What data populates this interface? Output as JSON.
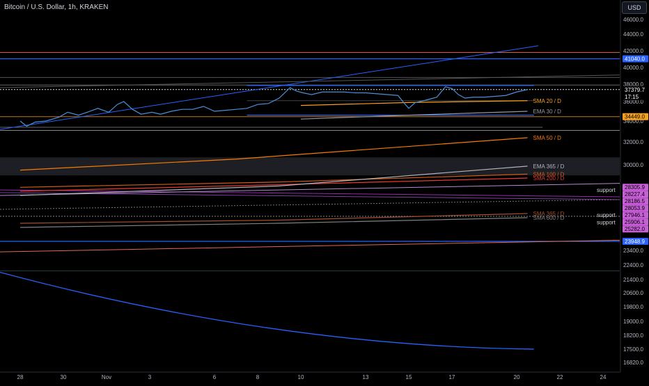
{
  "header": {
    "symbol_title": "Bitcoin / U.S. Dollar, 1h, KRAKEN",
    "currency_label": "USD"
  },
  "chart_data": {
    "type": "line",
    "title": "Bitcoin / U.S. Dollar, 1h, KRAKEN",
    "xlabel": "",
    "ylabel": "",
    "x_ticks": [
      {
        "label": "28",
        "day": 0
      },
      {
        "label": "30",
        "day": 2
      },
      {
        "label": "Nov",
        "day": 4
      },
      {
        "label": "3",
        "day": 6
      },
      {
        "label": "6",
        "day": 9
      },
      {
        "label": "8",
        "day": 11
      },
      {
        "label": "10",
        "day": 13
      },
      {
        "label": "13",
        "day": 16
      },
      {
        "label": "15",
        "day": 18
      },
      {
        "label": "17",
        "day": 20
      },
      {
        "label": "20",
        "day": 23
      },
      {
        "label": "22",
        "day": 25
      },
      {
        "label": "24",
        "day": 27
      }
    ],
    "y_ticks": [
      {
        "label": "46000.0",
        "value": 46000
      },
      {
        "label": "44000.0",
        "value": 44000
      },
      {
        "label": "42000.0",
        "value": 42000
      },
      {
        "label": "40000.0",
        "value": 40000
      },
      {
        "label": "38000.0",
        "value": 38000
      },
      {
        "label": "36000.0",
        "value": 36000
      },
      {
        "label": "34000.0",
        "value": 34000
      },
      {
        "label": "32000.0",
        "value": 32000
      },
      {
        "label": "30000.0",
        "value": 30000
      },
      {
        "label": "23400.0",
        "value": 23400
      },
      {
        "label": "22400.0",
        "value": 22400
      },
      {
        "label": "21400.0",
        "value": 21400
      },
      {
        "label": "20600.0",
        "value": 20600
      },
      {
        "label": "19800.0",
        "value": 19800
      },
      {
        "label": "19000.0",
        "value": 19000
      },
      {
        "label": "18200.0",
        "value": 18200
      },
      {
        "label": "17500.0",
        "value": 17500
      },
      {
        "label": "16820.0",
        "value": 16820
      }
    ],
    "price_series": {
      "color": "#4a90d9",
      "points": [
        [
          0,
          34000
        ],
        [
          0.3,
          33500
        ],
        [
          0.7,
          33900
        ],
        [
          1.2,
          34000
        ],
        [
          1.8,
          34400
        ],
        [
          2.2,
          34900
        ],
        [
          2.7,
          34600
        ],
        [
          3.1,
          34900
        ],
        [
          3.6,
          35300
        ],
        [
          4.1,
          34900
        ],
        [
          4.5,
          35700
        ],
        [
          4.8,
          36000
        ],
        [
          5.2,
          35200
        ],
        [
          5.6,
          34700
        ],
        [
          6.1,
          34900
        ],
        [
          6.5,
          34700
        ],
        [
          7.0,
          35000
        ],
        [
          7.5,
          35200
        ],
        [
          8.0,
          35200
        ],
        [
          8.5,
          35500
        ],
        [
          9.0,
          35000
        ],
        [
          9.5,
          35100
        ],
        [
          10.0,
          35200
        ],
        [
          10.5,
          35300
        ],
        [
          11.0,
          35700
        ],
        [
          11.5,
          35800
        ],
        [
          12.0,
          36400
        ],
        [
          12.5,
          37600
        ],
        [
          12.8,
          37200
        ],
        [
          13.1,
          37000
        ],
        [
          13.5,
          36800
        ],
        [
          14.0,
          37100
        ],
        [
          14.5,
          37100
        ],
        [
          15.0,
          37100
        ],
        [
          15.5,
          37000
        ],
        [
          16.0,
          37000
        ],
        [
          16.5,
          36900
        ],
        [
          17.0,
          36800
        ],
        [
          17.5,
          36700
        ],
        [
          17.8,
          35800
        ],
        [
          18.0,
          35300
        ],
        [
          18.3,
          35900
        ],
        [
          18.7,
          36100
        ],
        [
          19.0,
          36300
        ],
        [
          19.3,
          36500
        ],
        [
          19.7,
          37700
        ],
        [
          20.0,
          37500
        ],
        [
          20.3,
          36800
        ],
        [
          20.6,
          36400
        ],
        [
          21.0,
          36500
        ],
        [
          21.5,
          36500
        ],
        [
          22.0,
          36600
        ],
        [
          22.5,
          36700
        ],
        [
          23.0,
          37100
        ],
        [
          23.5,
          37379.7
        ]
      ]
    },
    "moving_averages": [
      {
        "name": "SMA 20 / D",
        "color": "#f7a21b",
        "points": [
          [
            13,
            35600
          ],
          [
            18,
            35900
          ],
          [
            23.5,
            36100
          ]
        ]
      },
      {
        "name": "EMA 30 / D",
        "color": "#9598a1",
        "points": [
          [
            13,
            34200
          ],
          [
            18,
            34600
          ],
          [
            23.5,
            35000
          ]
        ]
      },
      {
        "name": "SMA 50 / D",
        "color": "#f57c00",
        "points": [
          [
            0,
            29600
          ],
          [
            10,
            30500
          ],
          [
            23.5,
            32400
          ]
        ]
      },
      {
        "name": "SMA 100 / D",
        "color": "#d35e1a",
        "points": [
          [
            0,
            28300
          ],
          [
            12,
            28700
          ],
          [
            23.5,
            29300
          ]
        ]
      },
      {
        "name": "SMA 200 / D",
        "color": "#e53935",
        "points": [
          [
            0,
            28000
          ],
          [
            12,
            28500
          ],
          [
            23.5,
            29000
          ]
        ]
      },
      {
        "name": "EMA 365 / D",
        "color": "#b0b3bb",
        "points": [
          [
            0,
            27700
          ],
          [
            12,
            28400
          ],
          [
            23.5,
            29900
          ]
        ]
      },
      {
        "name": "SMA 365 / D",
        "color": "#a0522d",
        "points": [
          [
            0,
            25600
          ],
          [
            12,
            25900
          ],
          [
            23.5,
            26400
          ]
        ]
      },
      {
        "name": "SMA 600 / D",
        "color": "#808080",
        "points": [
          [
            0,
            25200
          ],
          [
            12,
            25600
          ],
          [
            23.5,
            26100
          ]
        ]
      }
    ],
    "price_labels": [
      {
        "label": "41040.0",
        "value": 41040,
        "bg": "#2962ff",
        "fg": "#ffffff"
      },
      {
        "label": "37379.7",
        "value": 37379.7,
        "bg": "#000000",
        "fg": "#ffffff"
      },
      {
        "label": "17:15",
        "value": 36900,
        "bg": "#000000",
        "fg": "#ffffff"
      },
      {
        "label": "34449.0",
        "value": 34449,
        "bg": "#f7a21b",
        "fg": "#000000"
      },
      {
        "label": "28305.9",
        "value": 28305.9,
        "bg": "#c85fd8",
        "fg": "#000000"
      },
      {
        "label": "28227.4",
        "value": 28227.4,
        "bg": "#c85fd8",
        "fg": "#000000"
      },
      {
        "label": "28186.5",
        "value": 28186.5,
        "bg": "#c85fd8",
        "fg": "#000000"
      },
      {
        "label": "28053.9",
        "value": 28053.9,
        "bg": "#c85fd8",
        "fg": "#000000"
      },
      {
        "label": "27946.1",
        "value": 27946.1,
        "bg": "#c85fd8",
        "fg": "#000000"
      },
      {
        "label": "25906.1",
        "value": 25906.1,
        "bg": "#c85fd8",
        "fg": "#000000"
      },
      {
        "label": "25282.0",
        "value": 25282.0,
        "bg": "#c85fd8",
        "fg": "#000000"
      },
      {
        "label": "23948.9",
        "value": 23948.9,
        "bg": "#2962ff",
        "fg": "#ffffff"
      }
    ],
    "annotations": [
      {
        "text": "support",
        "value": 28100
      },
      {
        "text": "support",
        "value": 26300
      },
      {
        "text": "support",
        "value": 25700
      }
    ],
    "grid": false,
    "legend_placement": "none"
  }
}
